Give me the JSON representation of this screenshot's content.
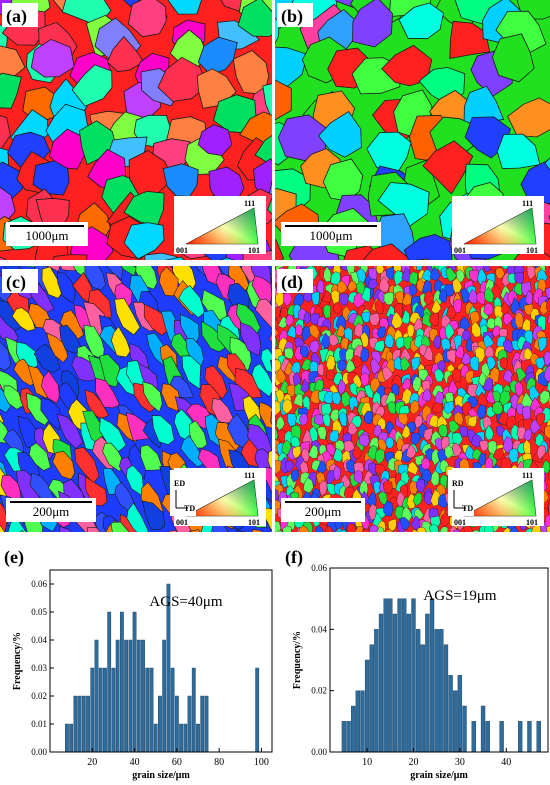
{
  "panels": [
    {
      "label": "(a)",
      "scale_bar": "1000μm",
      "legend": {
        "top": "111",
        "left": "001",
        "right": "101"
      }
    },
    {
      "label": "(b)",
      "scale_bar": "1000μm",
      "legend": {
        "top": "111",
        "left": "001",
        "right": "101"
      }
    },
    {
      "label": "(c)",
      "scale_bar": "200μm",
      "legend": {
        "top": "111",
        "left": "001",
        "right": "101"
      },
      "axes": {
        "up": "ED",
        "right": "TD"
      }
    },
    {
      "label": "(d)",
      "scale_bar": "200μm",
      "legend": {
        "top": "111",
        "left": "001",
        "right": "101"
      },
      "axes": {
        "up": "RD",
        "right": "TD"
      }
    }
  ],
  "chart_data": [
    {
      "type": "bar",
      "panel_label": "(e)",
      "annotation": "AGS=40μm",
      "xlabel": "grain size/μm",
      "ylabel": "Frequency/%",
      "xlim": [
        0,
        105
      ],
      "ylim": [
        0,
        0.065
      ],
      "xticks": [
        20,
        40,
        60,
        80,
        100
      ],
      "yticks": [
        0.0,
        0.01,
        0.02,
        0.03,
        0.04,
        0.05,
        0.06
      ],
      "x": [
        8,
        10,
        12,
        14,
        16,
        18,
        20,
        22,
        24,
        26,
        28,
        30,
        32,
        34,
        36,
        38,
        40,
        42,
        44,
        46,
        48,
        50,
        52,
        54,
        56,
        58,
        60,
        62,
        64,
        66,
        68,
        70,
        72,
        74,
        98
      ],
      "values": [
        0.01,
        0.01,
        0.02,
        0.02,
        0.02,
        0.02,
        0.03,
        0.04,
        0.03,
        0.03,
        0.05,
        0.03,
        0.04,
        0.05,
        0.04,
        0.04,
        0.05,
        0.04,
        0.04,
        0.03,
        0.03,
        0.01,
        0.02,
        0.04,
        0.06,
        0.03,
        0.02,
        0.01,
        0.01,
        0.02,
        0.03,
        0.01,
        0.02,
        0.02,
        0.03
      ]
    },
    {
      "type": "bar",
      "panel_label": "(f)",
      "annotation": "AGS=19μm",
      "xlabel": "grain size/μm",
      "ylabel": "Frequency/%",
      "xlim": [
        2,
        49
      ],
      "ylim": [
        0,
        0.06
      ],
      "xticks": [
        10,
        20,
        30,
        40
      ],
      "yticks": [
        0.0,
        0.02,
        0.04,
        0.06
      ],
      "x": [
        5,
        6,
        7,
        8,
        9,
        10,
        11,
        12,
        13,
        14,
        15,
        16,
        17,
        18,
        19,
        20,
        21,
        22,
        23,
        24,
        25,
        26,
        27,
        28,
        29,
        30,
        31,
        33,
        35,
        36,
        39,
        43,
        45,
        47
      ],
      "values": [
        0.01,
        0.01,
        0.015,
        0.02,
        0.02,
        0.03,
        0.035,
        0.04,
        0.045,
        0.05,
        0.05,
        0.045,
        0.05,
        0.05,
        0.045,
        0.05,
        0.04,
        0.035,
        0.045,
        0.05,
        0.04,
        0.04,
        0.035,
        0.025,
        0.02,
        0.025,
        0.015,
        0.01,
        0.015,
        0.01,
        0.01,
        0.01,
        0.01,
        0.01
      ]
    }
  ]
}
